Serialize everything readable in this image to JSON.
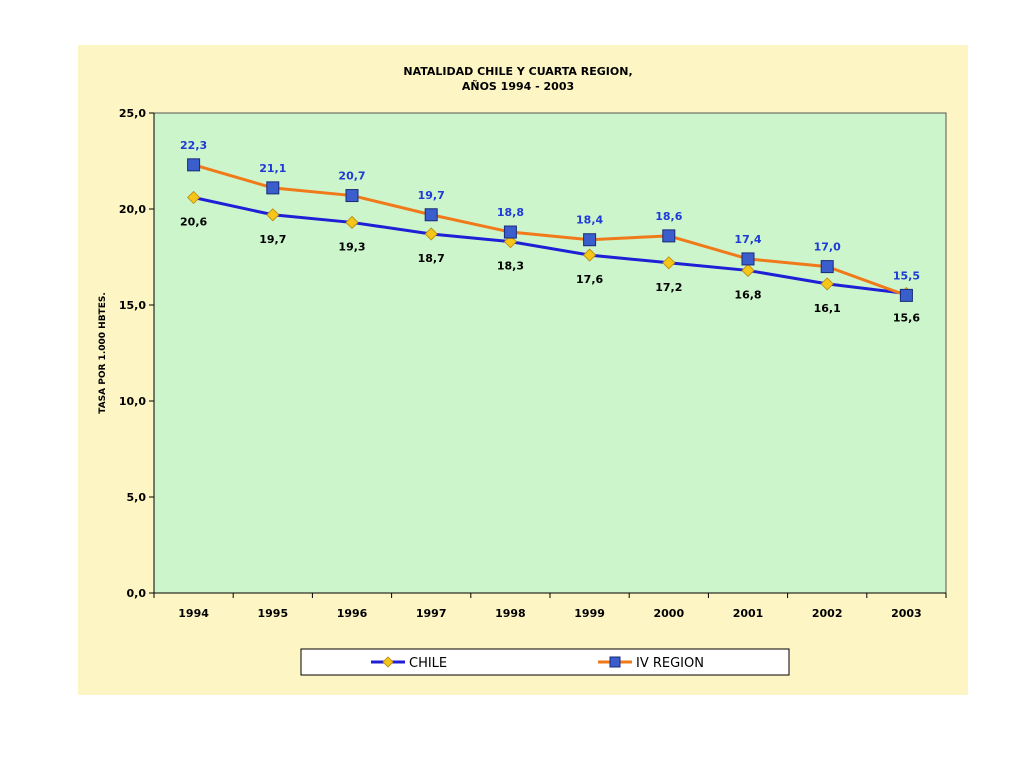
{
  "chart_data": {
    "type": "line",
    "title_lines": [
      "NATALIDAD CHILE Y CUARTA REGION,",
      "AÑOS 1994 - 2003"
    ],
    "ylabel": "TASA POR 1.000 HBTES.",
    "xlabel": "",
    "categories": [
      "1994",
      "1995",
      "1996",
      "1997",
      "1998",
      "1999",
      "2000",
      "2001",
      "2002",
      "2003"
    ],
    "y_ticks": [
      "0,0",
      "5,0",
      "10,0",
      "15,0",
      "20,0",
      "25,0"
    ],
    "ylim": [
      0,
      25
    ],
    "grid": false,
    "legend_position": "bottom",
    "series": [
      {
        "name": "CHILE",
        "values": [
          20.6,
          19.7,
          19.3,
          18.7,
          18.3,
          17.6,
          17.2,
          16.8,
          16.1,
          15.6
        ],
        "labels": [
          "20,6",
          "19,7",
          "19,3",
          "18,7",
          "18,3",
          "17,6",
          "17,2",
          "16,8",
          "16,1",
          "15,6"
        ],
        "line_color": "#1f1fd6",
        "marker": "diamond",
        "marker_color": "#f5c518"
      },
      {
        "name": "IV REGION",
        "values": [
          22.3,
          21.1,
          20.7,
          19.7,
          18.8,
          18.4,
          18.6,
          17.4,
          17.0,
          15.5
        ],
        "labels": [
          "22,3",
          "21,1",
          "20,7",
          "19,7",
          "18,8",
          "18,4",
          "18,6",
          "17,4",
          "17,0",
          "15,5"
        ],
        "line_color": "#f07a1a",
        "marker": "square",
        "marker_color": "#3a5fcd"
      }
    ],
    "plot_background": "#ccf5cc",
    "chart_background": "#fdf6c4"
  }
}
